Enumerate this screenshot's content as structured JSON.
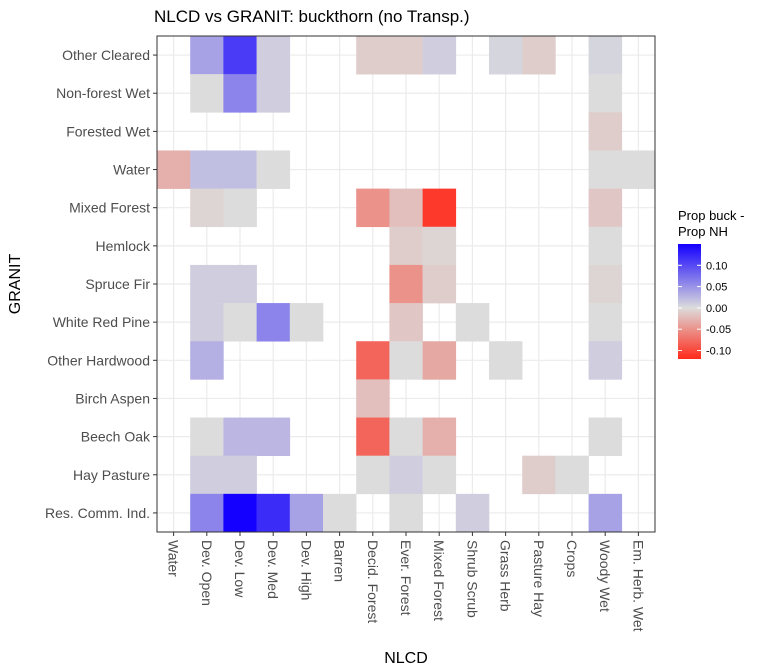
{
  "chart_data": {
    "type": "heatmap",
    "title": "NLCD vs GRANIT: buckthorn (no Transp.)",
    "xlabel": "NLCD",
    "ylabel": "GRANIT",
    "x_categories": [
      "Water",
      "Dev. Open",
      "Dev. Low",
      "Dev. Med",
      "Dev. High",
      "Barren",
      "Decid. Forest",
      "Ever. Forest",
      "Mixed Forest",
      "Shrub Scrub",
      "Grass Herb",
      "Pasture Hay",
      "Crops",
      "Woody Wet",
      "Em. Herb. Wet"
    ],
    "y_categories": [
      "Other Cleared",
      "Non-forest Wet",
      "Forested Wet",
      "Water",
      "Mixed Forest",
      "Hemlock",
      "Spruce Fir",
      "White Red Pine",
      "Other Hardwood",
      "Birch Aspen",
      "Beech Oak",
      "Hay Pasture",
      "Res. Comm. Ind."
    ],
    "cells": [
      {
        "x": "Dev. Open",
        "y": "Other Cleared",
        "value": 0.04
      },
      {
        "x": "Dev. Low",
        "y": "Other Cleared",
        "value": 0.11
      },
      {
        "x": "Dev. Med",
        "y": "Other Cleared",
        "value": 0.01
      },
      {
        "x": "Decid. Forest",
        "y": "Other Cleared",
        "value": -0.01
      },
      {
        "x": "Ever. Forest",
        "y": "Other Cleared",
        "value": -0.01
      },
      {
        "x": "Mixed Forest",
        "y": "Other Cleared",
        "value": 0.01
      },
      {
        "x": "Grass Herb",
        "y": "Other Cleared",
        "value": 0.005
      },
      {
        "x": "Pasture Hay",
        "y": "Other Cleared",
        "value": -0.01
      },
      {
        "x": "Woody Wet",
        "y": "Other Cleared",
        "value": 0.005
      },
      {
        "x": "Dev. Open",
        "y": "Non-forest Wet",
        "value": 0.0
      },
      {
        "x": "Dev. Low",
        "y": "Non-forest Wet",
        "value": 0.06
      },
      {
        "x": "Dev. Med",
        "y": "Non-forest Wet",
        "value": 0.01
      },
      {
        "x": "Woody Wet",
        "y": "Non-forest Wet",
        "value": 0.0
      },
      {
        "x": "Woody Wet",
        "y": "Forested Wet",
        "value": -0.01
      },
      {
        "x": "Water",
        "y": "Water",
        "value": -0.03
      },
      {
        "x": "Dev. Open",
        "y": "Water",
        "value": 0.02
      },
      {
        "x": "Dev. Low",
        "y": "Water",
        "value": 0.02
      },
      {
        "x": "Dev. Med",
        "y": "Water",
        "value": 0.0
      },
      {
        "x": "Woody Wet",
        "y": "Water",
        "value": 0.0
      },
      {
        "x": "Em. Herb. Wet",
        "y": "Water",
        "value": 0.0
      },
      {
        "x": "Dev. Open",
        "y": "Mixed Forest",
        "value": -0.005
      },
      {
        "x": "Dev. Low",
        "y": "Mixed Forest",
        "value": 0.0
      },
      {
        "x": "Decid. Forest",
        "y": "Mixed Forest",
        "value": -0.05
      },
      {
        "x": "Ever. Forest",
        "y": "Mixed Forest",
        "value": -0.02
      },
      {
        "x": "Mixed Forest",
        "y": "Mixed Forest",
        "value": -0.11
      },
      {
        "x": "Woody Wet",
        "y": "Mixed Forest",
        "value": -0.015
      },
      {
        "x": "Ever. Forest",
        "y": "Hemlock",
        "value": -0.01
      },
      {
        "x": "Mixed Forest",
        "y": "Hemlock",
        "value": -0.005
      },
      {
        "x": "Woody Wet",
        "y": "Hemlock",
        "value": 0.0
      },
      {
        "x": "Dev. Open",
        "y": "Spruce Fir",
        "value": 0.01
      },
      {
        "x": "Dev. Low",
        "y": "Spruce Fir",
        "value": 0.01
      },
      {
        "x": "Ever. Forest",
        "y": "Spruce Fir",
        "value": -0.05
      },
      {
        "x": "Mixed Forest",
        "y": "Spruce Fir",
        "value": -0.01
      },
      {
        "x": "Woody Wet",
        "y": "Spruce Fir",
        "value": -0.005
      },
      {
        "x": "Dev. Open",
        "y": "White Red Pine",
        "value": 0.01
      },
      {
        "x": "Dev. Low",
        "y": "White Red Pine",
        "value": 0.0
      },
      {
        "x": "Dev. Med",
        "y": "White Red Pine",
        "value": 0.06
      },
      {
        "x": "Dev. High",
        "y": "White Red Pine",
        "value": 0.0
      },
      {
        "x": "Ever. Forest",
        "y": "White Red Pine",
        "value": -0.015
      },
      {
        "x": "Shrub Scrub",
        "y": "White Red Pine",
        "value": 0.0
      },
      {
        "x": "Woody Wet",
        "y": "White Red Pine",
        "value": 0.0
      },
      {
        "x": "Dev. Open",
        "y": "Other Hardwood",
        "value": 0.03
      },
      {
        "x": "Decid. Forest",
        "y": "Other Hardwood",
        "value": -0.08
      },
      {
        "x": "Ever. Forest",
        "y": "Other Hardwood",
        "value": 0.0
      },
      {
        "x": "Mixed Forest",
        "y": "Other Hardwood",
        "value": -0.035
      },
      {
        "x": "Grass Herb",
        "y": "Other Hardwood",
        "value": 0.0
      },
      {
        "x": "Woody Wet",
        "y": "Other Hardwood",
        "value": 0.01
      },
      {
        "x": "Decid. Forest",
        "y": "Birch Aspen",
        "value": -0.02
      },
      {
        "x": "Dev. Open",
        "y": "Beech Oak",
        "value": 0.0
      },
      {
        "x": "Dev. Low",
        "y": "Beech Oak",
        "value": 0.025
      },
      {
        "x": "Dev. Med",
        "y": "Beech Oak",
        "value": 0.025
      },
      {
        "x": "Decid. Forest",
        "y": "Beech Oak",
        "value": -0.08
      },
      {
        "x": "Ever. Forest",
        "y": "Beech Oak",
        "value": 0.0
      },
      {
        "x": "Mixed Forest",
        "y": "Beech Oak",
        "value": -0.03
      },
      {
        "x": "Woody Wet",
        "y": "Beech Oak",
        "value": 0.0
      },
      {
        "x": "Dev. Open",
        "y": "Hay Pasture",
        "value": 0.01
      },
      {
        "x": "Dev. Low",
        "y": "Hay Pasture",
        "value": 0.01
      },
      {
        "x": "Decid. Forest",
        "y": "Hay Pasture",
        "value": 0.0
      },
      {
        "x": "Ever. Forest",
        "y": "Hay Pasture",
        "value": 0.01
      },
      {
        "x": "Mixed Forest",
        "y": "Hay Pasture",
        "value": 0.0
      },
      {
        "x": "Pasture Hay",
        "y": "Hay Pasture",
        "value": -0.01
      },
      {
        "x": "Crops",
        "y": "Hay Pasture",
        "value": 0.0
      },
      {
        "x": "Dev. Open",
        "y": "Res. Comm. Ind.",
        "value": 0.06
      },
      {
        "x": "Dev. Low",
        "y": "Res. Comm. Ind.",
        "value": 0.15
      },
      {
        "x": "Dev. Med",
        "y": "Res. Comm. Ind.",
        "value": 0.12
      },
      {
        "x": "Dev. High",
        "y": "Res. Comm. Ind.",
        "value": 0.04
      },
      {
        "x": "Barren",
        "y": "Res. Comm. Ind.",
        "value": 0.0
      },
      {
        "x": "Ever. Forest",
        "y": "Res. Comm. Ind.",
        "value": 0.0
      },
      {
        "x": "Shrub Scrub",
        "y": "Res. Comm. Ind.",
        "value": 0.01
      },
      {
        "x": "Woody Wet",
        "y": "Res. Comm. Ind.",
        "value": 0.04
      }
    ],
    "color_scale": {
      "low": "#ff2a1a",
      "mid": "#dcdcdc",
      "high": "#1400ff",
      "min": -0.12,
      "max": 0.15
    },
    "legend": {
      "title_lines": [
        "Prop buck -",
        "Prop NH"
      ],
      "tick_values": [
        0.1,
        0.05,
        0.0,
        -0.05,
        -0.1
      ],
      "tick_labels": [
        "0.10",
        "0.05",
        "0.00",
        "-0.05",
        "-0.10"
      ],
      "position": "right"
    },
    "grid": true,
    "theme": {
      "panel_background": "#ffffff",
      "grid_color": "#ebebeb",
      "panel_border": "#333333"
    }
  }
}
